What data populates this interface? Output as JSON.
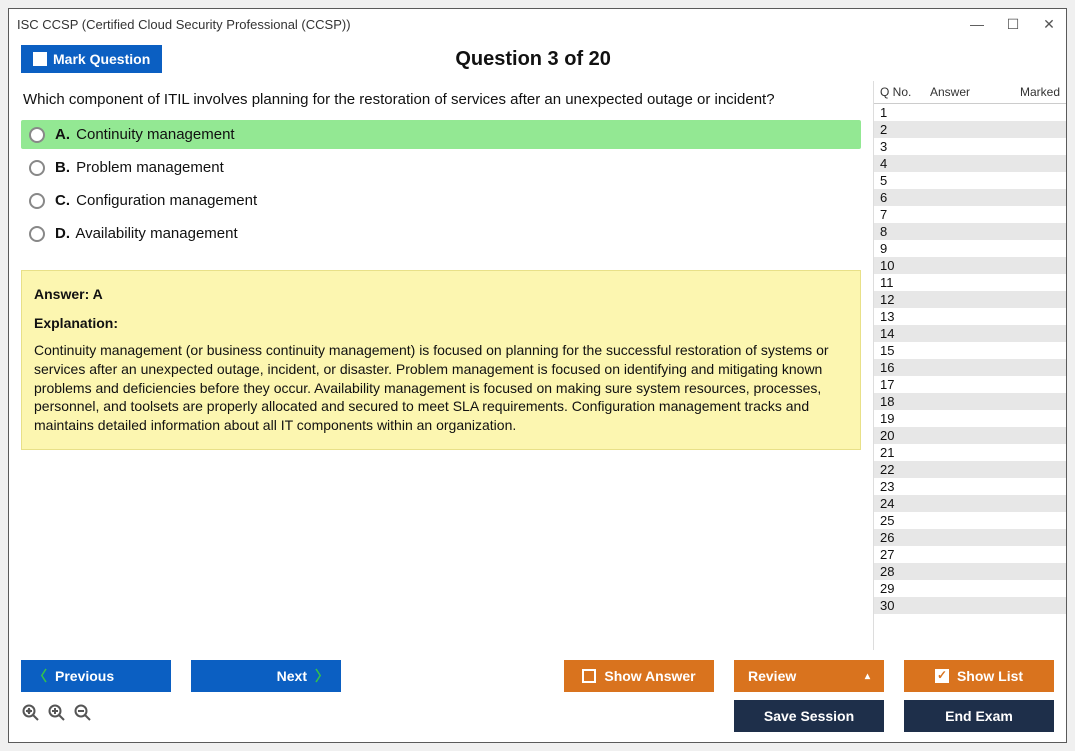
{
  "window": {
    "title": "ISC CCSP (Certified Cloud Security Professional (CCSP))"
  },
  "header": {
    "mark_label": "Mark Question",
    "question_header": "Question 3 of 20"
  },
  "question": {
    "text": "Which component of ITIL involves planning for the restoration of services after an unexpected outage or incident?",
    "options": [
      {
        "letter": "A.",
        "text": "Continuity management",
        "correct": true
      },
      {
        "letter": "B.",
        "text": "Problem management",
        "correct": false
      },
      {
        "letter": "C.",
        "text": "Configuration management",
        "correct": false
      },
      {
        "letter": "D.",
        "text": "Availability management",
        "correct": false
      }
    ]
  },
  "answer_box": {
    "answer_line": "Answer: A",
    "explanation_label": "Explanation:",
    "explanation_text": "Continuity management (or business continuity management) is focused on planning for the successful restoration of systems or services after an unexpected outage, incident, or disaster. Problem management is focused on identifying and mitigating known problems and deficiencies before they occur. Availability management is focused on making sure system resources, processes, personnel, and toolsets are properly allocated and secured to meet SLA requirements. Configuration management tracks and maintains detailed information about all IT components within an organization."
  },
  "side_panel": {
    "col_qno": "Q No.",
    "col_answer": "Answer",
    "col_marked": "Marked",
    "row_count": 30
  },
  "buttons": {
    "previous": "Previous",
    "next": "Next",
    "show_answer": "Show Answer",
    "review": "Review",
    "show_list": "Show List",
    "save_session": "Save Session",
    "end_exam": "End Exam"
  },
  "colors": {
    "blue": "#0b5fc2",
    "orange": "#d9731e",
    "navy": "#1e2f4a",
    "correct_bg": "#93e893",
    "answer_bg": "#fcf6b0",
    "row_alt": "#e7e7e7"
  }
}
